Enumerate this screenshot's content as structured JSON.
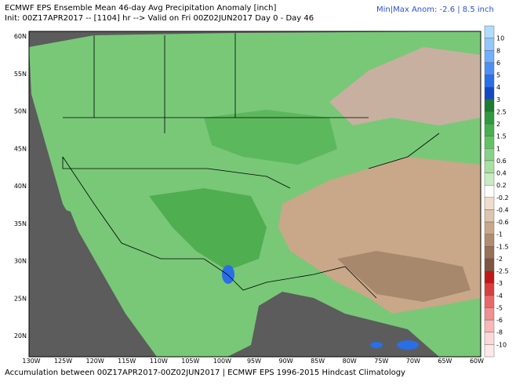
{
  "header": {
    "title": "ECMWF EPS Ensemble Mean 46-day Avg Precipitation Anomaly [inch]",
    "subtitle": "Init: 00Z17APR2017 -- [1104] hr --> Valid on Fri 00Z02JUN2017  Day 0 - Day 46",
    "range": "Min|Max Anom: -2.6 | 8.5 inch"
  },
  "map": {
    "lat_labels": [
      "60N",
      "55N",
      "50N",
      "45N",
      "40N",
      "35N",
      "30N",
      "25N",
      "20N"
    ],
    "lon_labels": [
      "130W",
      "125W",
      "120W",
      "115W",
      "110W",
      "105W",
      "100W",
      "95W",
      "90W",
      "85W",
      "80W",
      "75W",
      "70W",
      "65W",
      "60W"
    ]
  },
  "colorbar": {
    "labels": [
      "10",
      "8",
      "6",
      "5",
      "4",
      "3",
      "2.5",
      "2",
      "1.5",
      "1",
      "0.6",
      "0.4",
      "0.2",
      "-0.2",
      "-0.4",
      "-0.6",
      "-1",
      "-1.5",
      "-2",
      "-2.5",
      "-3",
      "-4",
      "-5",
      "-6",
      "-8",
      "-10"
    ]
  },
  "footer": "Accumulation between 00Z17APR2017-00Z02JUN2017 | ECMWF EPS 1996-2015 Hindcast Climatology"
}
